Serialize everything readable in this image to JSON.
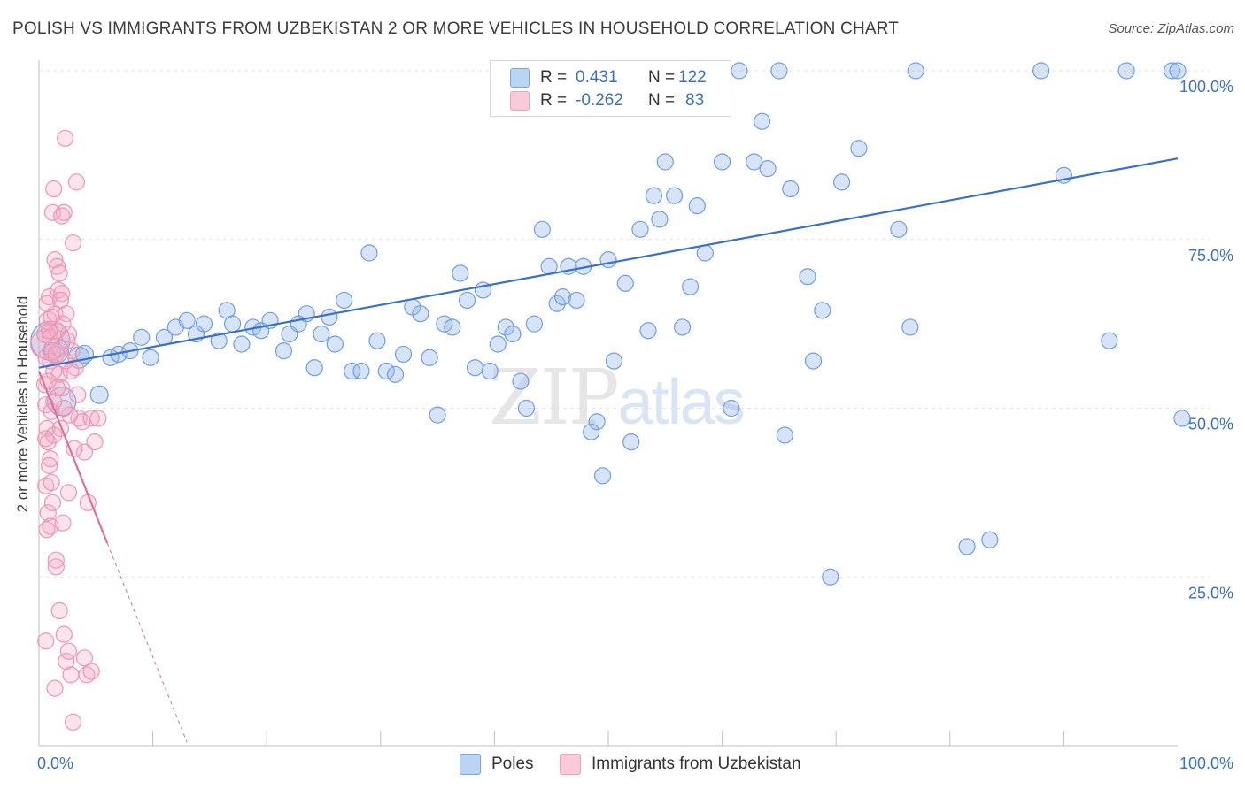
{
  "title": "POLISH VS IMMIGRANTS FROM UZBEKISTAN 2 OR MORE VEHICLES IN HOUSEHOLD CORRELATION CHART",
  "source": "Source: ZipAtlas.com",
  "watermark": {
    "zip": "ZIP",
    "atlas": "atlas"
  },
  "legend": {
    "r_label": "R =",
    "n_label": "N =",
    "rows": [
      {
        "r": "0.431",
        "n": "122",
        "color": "#a9c7f0"
      },
      {
        "r": "-0.262",
        "n": "83",
        "color": "#f6b8cc"
      }
    ]
  },
  "chart_data": {
    "type": "scatter",
    "title": "POLISH VS IMMIGRANTS FROM UZBEKISTAN 2 OR MORE VEHICLES IN HOUSEHOLD CORRELATION CHART",
    "xlabel": "",
    "ylabel": "2 or more Vehicles in Household",
    "xlim": [
      0,
      100
    ],
    "ylim": [
      0,
      102
    ],
    "x_tick_labels": [
      "0.0%",
      "100.0%"
    ],
    "y_ticks": [
      25,
      50,
      75,
      100
    ],
    "y_tick_labels": [
      "25.0%",
      "50.0%",
      "75.0%",
      "100.0%"
    ],
    "grid": true,
    "legend_position": "bottom",
    "series": [
      {
        "name": "Poles",
        "color": "#7aa6e0",
        "line_color": "#3a70c6",
        "trend": {
          "x": [
            0,
            100
          ],
          "y": [
            56.0,
            87.0
          ]
        },
        "points": [
          [
            1.0,
            60.0,
            22
          ],
          [
            2.0,
            51.0,
            16
          ],
          [
            1.5,
            58.5,
            14
          ],
          [
            3.5,
            57.5,
            12
          ],
          [
            4.0,
            58.0,
            10
          ],
          [
            5.3,
            52.0,
            10
          ],
          [
            6.3,
            57.5,
            9
          ],
          [
            7.0,
            58.0,
            9
          ],
          [
            8.0,
            58.5,
            9
          ],
          [
            9.0,
            60.5,
            9
          ],
          [
            9.8,
            57.5,
            9
          ],
          [
            11.0,
            60.5,
            9
          ],
          [
            12.0,
            62.0,
            9
          ],
          [
            13.0,
            63.0,
            9
          ],
          [
            13.8,
            61.0,
            9
          ],
          [
            14.5,
            62.5,
            9
          ],
          [
            15.8,
            60.0,
            9
          ],
          [
            16.5,
            64.5,
            9
          ],
          [
            17.0,
            62.5,
            9
          ],
          [
            17.8,
            59.5,
            9
          ],
          [
            18.8,
            62.0,
            9
          ],
          [
            19.5,
            61.5,
            9
          ],
          [
            20.3,
            63.0,
            9
          ],
          [
            21.5,
            58.5,
            9
          ],
          [
            22.0,
            61.0,
            9
          ],
          [
            22.8,
            62.5,
            9
          ],
          [
            23.5,
            64.0,
            9
          ],
          [
            24.2,
            56.0,
            9
          ],
          [
            24.8,
            61.0,
            9
          ],
          [
            25.5,
            63.5,
            9
          ],
          [
            26.0,
            59.5,
            9
          ],
          [
            26.8,
            66.0,
            9
          ],
          [
            27.5,
            55.5,
            9
          ],
          [
            28.3,
            55.5,
            9
          ],
          [
            29.0,
            73.0,
            9
          ],
          [
            29.7,
            60.0,
            9
          ],
          [
            30.5,
            55.5,
            9
          ],
          [
            31.3,
            55.0,
            9
          ],
          [
            32.0,
            58.0,
            9
          ],
          [
            32.8,
            65.0,
            9
          ],
          [
            33.5,
            64.0,
            9
          ],
          [
            34.3,
            57.5,
            9
          ],
          [
            35.0,
            49.0,
            9
          ],
          [
            35.6,
            62.5,
            9
          ],
          [
            36.3,
            62.0,
            9
          ],
          [
            37.0,
            70.0,
            9
          ],
          [
            37.6,
            66.0,
            9
          ],
          [
            38.3,
            56.0,
            9
          ],
          [
            39.0,
            67.5,
            9
          ],
          [
            39.6,
            55.5,
            9
          ],
          [
            40.3,
            59.5,
            9
          ],
          [
            41.0,
            62.0,
            9
          ],
          [
            41.6,
            61.0,
            9
          ],
          [
            42.3,
            54.0,
            9
          ],
          [
            42.8,
            50.0,
            9
          ],
          [
            43.5,
            62.5,
            9
          ],
          [
            44.2,
            76.5,
            9
          ],
          [
            44.8,
            71.0,
            9
          ],
          [
            45.5,
            65.5,
            9
          ],
          [
            46.0,
            66.5,
            9
          ],
          [
            46.5,
            71.0,
            9
          ],
          [
            47.2,
            66.0,
            9
          ],
          [
            47.8,
            71.0,
            9
          ],
          [
            48.5,
            46.5,
            9
          ],
          [
            49.0,
            48.0,
            9
          ],
          [
            49.5,
            40.0,
            9
          ],
          [
            50.0,
            72.0,
            9
          ],
          [
            50.5,
            57.0,
            9
          ],
          [
            51.5,
            68.5,
            9
          ],
          [
            52.0,
            45.0,
            9
          ],
          [
            52.8,
            76.5,
            9
          ],
          [
            53.5,
            61.5,
            9
          ],
          [
            54.0,
            81.5,
            9
          ],
          [
            54.5,
            78.0,
            9
          ],
          [
            55.0,
            86.5,
            9
          ],
          [
            55.8,
            81.5,
            9
          ],
          [
            56.5,
            62.0,
            9
          ],
          [
            57.2,
            68.0,
            9
          ],
          [
            57.8,
            80.0,
            9
          ],
          [
            58.5,
            73.0,
            9
          ],
          [
            59.0,
            96.0,
            9
          ],
          [
            60.0,
            86.5,
            9
          ],
          [
            60.8,
            50.0,
            9
          ],
          [
            61.5,
            100.0,
            9
          ],
          [
            62.8,
            86.5,
            9
          ],
          [
            63.5,
            92.5,
            9
          ],
          [
            64.0,
            85.5,
            9
          ],
          [
            65.0,
            100.0,
            9
          ],
          [
            65.5,
            46.0,
            9
          ],
          [
            66.0,
            82.5,
            9
          ],
          [
            67.5,
            69.5,
            9
          ],
          [
            68.0,
            57.0,
            9
          ],
          [
            68.8,
            64.5,
            9
          ],
          [
            69.5,
            25.0,
            9
          ],
          [
            70.5,
            83.5,
            9
          ],
          [
            72.0,
            88.5,
            9
          ],
          [
            75.5,
            76.5,
            9
          ],
          [
            76.5,
            62.0,
            9
          ],
          [
            77.0,
            100.0,
            9
          ],
          [
            81.5,
            29.5,
            9
          ],
          [
            83.5,
            30.5,
            9
          ],
          [
            88.0,
            100.0,
            9
          ],
          [
            90.0,
            84.5,
            9
          ],
          [
            94.0,
            60.0,
            9
          ],
          [
            95.5,
            100.0,
            9
          ],
          [
            99.5,
            100.0,
            9
          ],
          [
            100.0,
            100.0,
            9
          ],
          [
            104.0,
            48.5,
            9
          ]
        ]
      },
      {
        "name": "Immigrants from Uzbekistan",
        "color": "#f0a0ba",
        "line_color": "#e06e98",
        "trend": {
          "x": [
            0,
            6
          ],
          "y": [
            55.5,
            30.0
          ]
        },
        "trend_dashed": {
          "x": [
            6,
            13
          ],
          "y": [
            30.0,
            0.5
          ]
        },
        "points": [
          [
            0.5,
            59.5,
            16
          ],
          [
            0.6,
            61.0,
            10
          ],
          [
            0.7,
            57.5,
            10
          ],
          [
            0.8,
            63.0,
            10
          ],
          [
            0.9,
            66.5,
            9
          ],
          [
            1.0,
            60.5,
            9
          ],
          [
            1.2,
            58.5,
            9
          ],
          [
            1.4,
            64.0,
            9
          ],
          [
            1.6,
            61.5,
            9
          ],
          [
            1.8,
            55.0,
            9
          ],
          [
            2.0,
            53.0,
            9
          ],
          [
            0.5,
            53.5,
            9
          ],
          [
            0.6,
            50.5,
            9
          ],
          [
            0.7,
            47.0,
            9
          ],
          [
            0.8,
            45.0,
            9
          ],
          [
            1.0,
            42.5,
            9
          ],
          [
            1.1,
            49.5,
            9
          ],
          [
            1.3,
            46.0,
            9
          ],
          [
            0.6,
            38.5,
            9
          ],
          [
            0.8,
            34.5,
            9
          ],
          [
            1.0,
            32.5,
            9
          ],
          [
            1.2,
            36.0,
            9
          ],
          [
            1.5,
            27.5,
            9
          ],
          [
            0.6,
            15.5,
            9
          ],
          [
            1.8,
            20.0,
            9
          ],
          [
            2.2,
            16.5,
            9
          ],
          [
            2.4,
            12.5,
            9
          ],
          [
            2.6,
            14.0,
            9
          ],
          [
            2.8,
            10.5,
            9
          ],
          [
            1.4,
            8.5,
            9
          ],
          [
            3.0,
            3.5,
            9
          ],
          [
            4.0,
            13.0,
            9
          ],
          [
            4.2,
            10.5,
            9
          ],
          [
            4.6,
            11.0,
            9
          ],
          [
            2.3,
            90.0,
            9
          ],
          [
            1.3,
            82.5,
            9
          ],
          [
            3.3,
            83.5,
            9
          ],
          [
            1.2,
            79.0,
            9
          ],
          [
            2.2,
            79.0,
            9
          ],
          [
            2.0,
            78.5,
            9
          ],
          [
            3.0,
            74.5,
            9
          ],
          [
            1.4,
            72.0,
            9
          ],
          [
            1.6,
            71.0,
            9
          ],
          [
            1.8,
            70.0,
            9
          ],
          [
            1.7,
            67.5,
            9
          ],
          [
            2.0,
            67.0,
            9
          ],
          [
            2.4,
            64.0,
            9
          ],
          [
            2.6,
            61.0,
            9
          ],
          [
            2.9,
            58.5,
            9
          ],
          [
            3.2,
            56.0,
            9
          ],
          [
            3.5,
            48.5,
            9
          ],
          [
            3.8,
            48.0,
            9
          ],
          [
            4.0,
            43.5,
            9
          ],
          [
            4.3,
            36.0,
            9
          ],
          [
            4.6,
            48.5,
            9
          ],
          [
            4.9,
            45.0,
            9
          ],
          [
            5.2,
            48.5,
            9
          ],
          [
            2.6,
            37.5,
            9
          ],
          [
            2.1,
            33.0,
            9
          ],
          [
            1.5,
            26.5,
            9
          ],
          [
            0.6,
            45.5,
            9
          ],
          [
            0.9,
            41.5,
            9
          ],
          [
            1.1,
            39.0,
            9
          ],
          [
            0.7,
            32.0,
            9
          ],
          [
            2.7,
            49.0,
            9
          ],
          [
            3.1,
            44.0,
            9
          ],
          [
            1.0,
            57.0,
            9
          ],
          [
            1.3,
            55.5,
            9
          ],
          [
            0.8,
            54.0,
            9
          ],
          [
            2.8,
            55.5,
            9
          ],
          [
            3.4,
            52.0,
            9
          ],
          [
            1.9,
            47.0,
            9
          ],
          [
            2.2,
            50.0,
            9
          ],
          [
            1.6,
            53.0,
            9
          ],
          [
            0.9,
            61.5,
            9
          ],
          [
            1.5,
            58.0,
            9
          ],
          [
            2.5,
            60.0,
            9
          ],
          [
            1.1,
            63.5,
            9
          ],
          [
            1.9,
            66.0,
            9
          ],
          [
            2.1,
            62.5,
            9
          ],
          [
            2.3,
            57.0,
            9
          ],
          [
            0.7,
            65.5,
            9
          ],
          [
            1.3,
            51.0,
            9
          ]
        ]
      }
    ]
  },
  "bottom_legend": {
    "items": [
      "Poles",
      "Immigrants from Uzbekistan"
    ]
  }
}
